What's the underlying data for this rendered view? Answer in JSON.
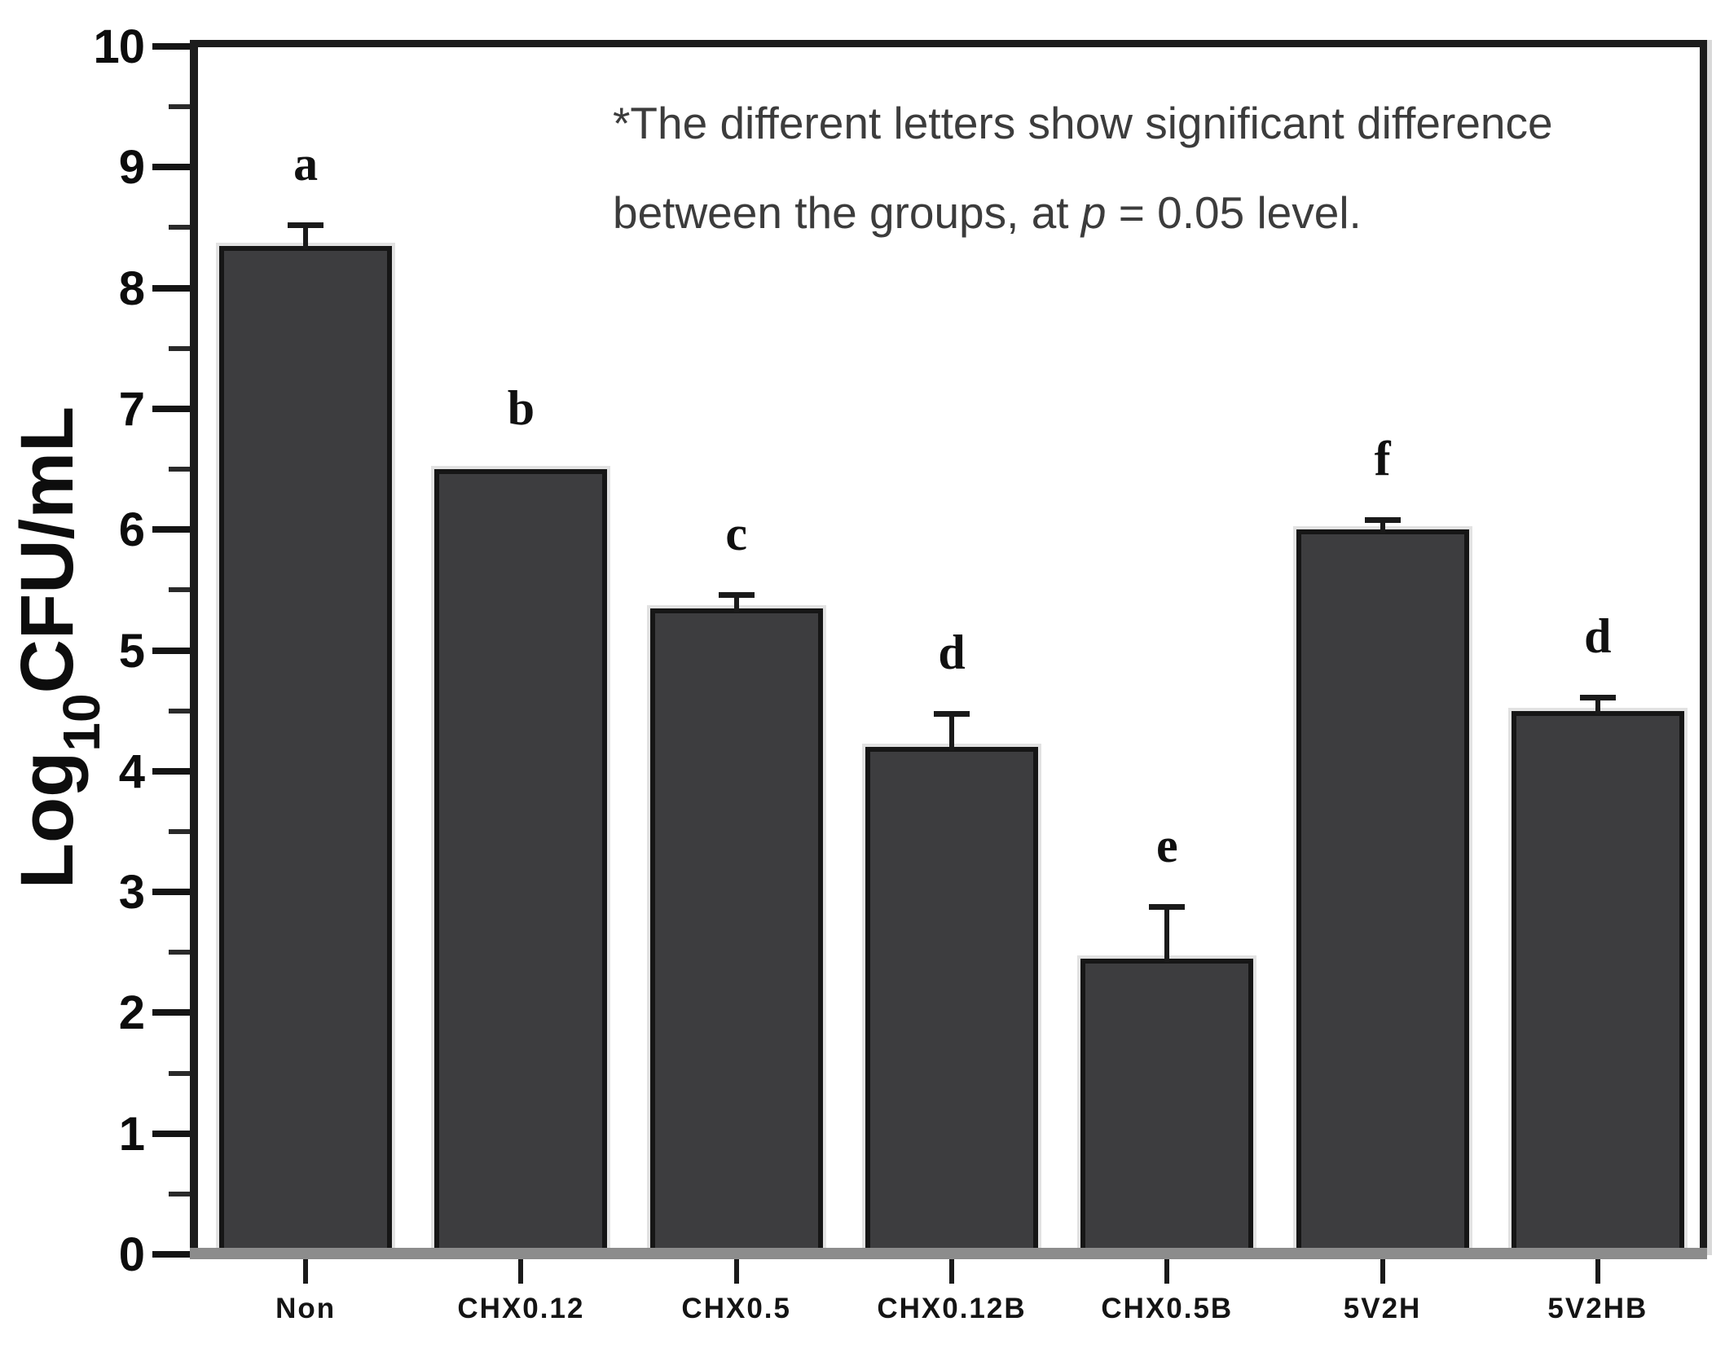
{
  "chart_data": {
    "type": "bar",
    "title": "",
    "ylabel_parts": {
      "prefix": "Log",
      "sub": "10",
      "suffix": "CFU/mL"
    },
    "ylim": [
      0,
      10
    ],
    "ytick_step": 1,
    "minor_tick_step": 0.5,
    "yticks": [
      0,
      1,
      2,
      3,
      4,
      5,
      6,
      7,
      8,
      9,
      10
    ],
    "grid": "off",
    "legend": "none",
    "categories": [
      "Non",
      "CHX0.12",
      "CHX0.5",
      "CHX0.12B",
      "CHX0.5B",
      "5V2H",
      "5V2HB"
    ],
    "series": [
      {
        "name": "Log10 CFU/mL",
        "values": [
          8.35,
          6.5,
          5.35,
          4.2,
          2.45,
          6.0,
          4.5
        ],
        "errors_plus": [
          0.17,
          0,
          0.11,
          0.28,
          0.43,
          0.08,
          0.11
        ],
        "significance_letters": [
          "a",
          "b",
          "c",
          "d",
          "e",
          "f",
          "d"
        ]
      }
    ],
    "annotation": {
      "line1": "*The different letters show significant difference",
      "line2_pre": "between the groups, at ",
      "line2_italic": "p",
      "line2_post": " = 0.05 level."
    },
    "colors": {
      "bar_fill": "#3d3d3f",
      "bar_outline": "#161616",
      "axis": "#1c1c1c",
      "baseline": "#8c8c8c",
      "annotation_text": "#3c3c3c",
      "background": "#ffffff"
    }
  }
}
